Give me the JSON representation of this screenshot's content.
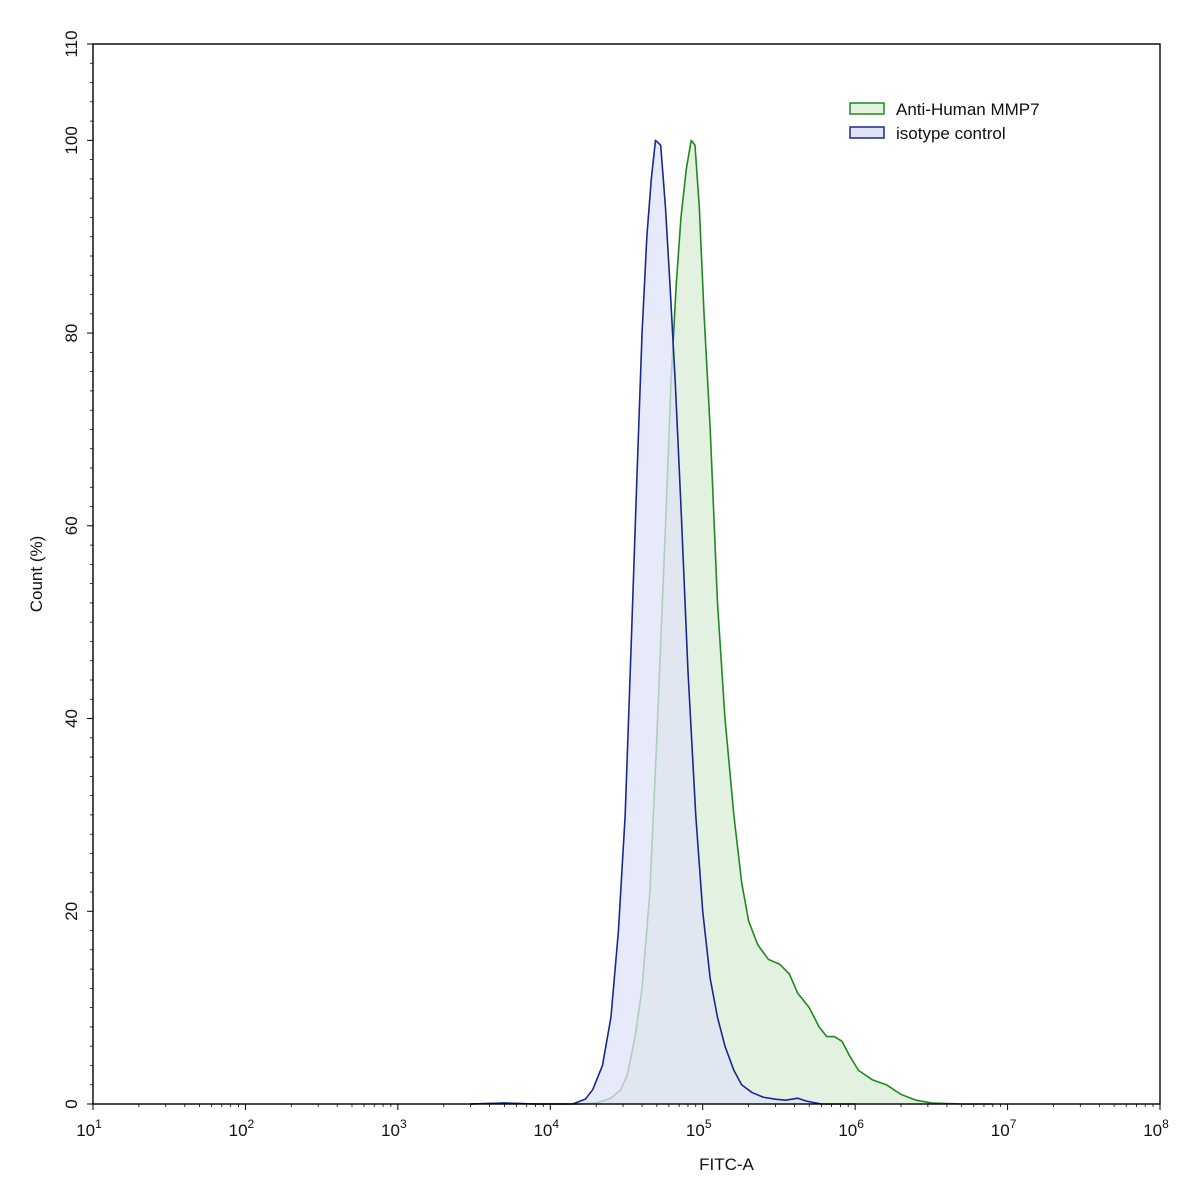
{
  "chart_data": {
    "type": "area",
    "xlabel": "FITC-A",
    "ylabel": "Count  (%)",
    "x_scale": "log10",
    "xlim": [
      10,
      100000000
    ],
    "ylim": [
      0,
      110
    ],
    "x_ticks": [
      {
        "base": "10",
        "exp": "1"
      },
      {
        "base": "10",
        "exp": "2"
      },
      {
        "base": "10",
        "exp": "3"
      },
      {
        "base": "10",
        "exp": "4"
      },
      {
        "base": "10",
        "exp": "5"
      },
      {
        "base": "10",
        "exp": "6"
      },
      {
        "base": "10",
        "exp": "7"
      },
      {
        "base": "10",
        "exp": "8"
      }
    ],
    "y_ticks": [
      "0",
      "20",
      "40",
      "60",
      "80",
      "100",
      "110"
    ],
    "legend_position": "top-right",
    "series": [
      {
        "name": "Anti-Human MMP7",
        "line_color": "#1e8a1e",
        "fill_color": "#e3f2e0",
        "points": [
          [
            3000,
            0
          ],
          [
            5000,
            0.1
          ],
          [
            8000,
            0
          ],
          [
            15000,
            0
          ],
          [
            20000,
            0.1
          ],
          [
            25000,
            0.6
          ],
          [
            29000,
            1.5
          ],
          [
            32000,
            3
          ],
          [
            36000,
            7
          ],
          [
            40000,
            12
          ],
          [
            45000,
            22
          ],
          [
            50000,
            38
          ],
          [
            57000,
            60
          ],
          [
            62000,
            75
          ],
          [
            67000,
            85
          ],
          [
            72000,
            92
          ],
          [
            78000,
            97
          ],
          [
            84000,
            100
          ],
          [
            89000,
            99.5
          ],
          [
            95000,
            93
          ],
          [
            102000,
            82
          ],
          [
            112000,
            70
          ],
          [
            125000,
            52
          ],
          [
            140000,
            40
          ],
          [
            160000,
            30
          ],
          [
            180000,
            23
          ],
          [
            200000,
            19
          ],
          [
            230000,
            16.5
          ],
          [
            270000,
            15
          ],
          [
            320000,
            14.5
          ],
          [
            370000,
            13.5
          ],
          [
            420000,
            11.5
          ],
          [
            500000,
            10
          ],
          [
            580000,
            8
          ],
          [
            650000,
            7
          ],
          [
            730000,
            7
          ],
          [
            820000,
            6.5
          ],
          [
            920000,
            5
          ],
          [
            1050000,
            3.5
          ],
          [
            1300000,
            2.5
          ],
          [
            1600000,
            2
          ],
          [
            2000000,
            1
          ],
          [
            2500000,
            0.4
          ],
          [
            3200000,
            0.1
          ],
          [
            5000000,
            0
          ],
          [
            8000000,
            0
          ]
        ]
      },
      {
        "name": "isotype control",
        "line_color": "#1a2890",
        "fill_color": "#dfe3f5",
        "points": [
          [
            3000,
            0
          ],
          [
            5000,
            0.1
          ],
          [
            8000,
            0
          ],
          [
            14000,
            0
          ],
          [
            17000,
            0.5
          ],
          [
            19000,
            1.5
          ],
          [
            22000,
            4
          ],
          [
            25000,
            9
          ],
          [
            28000,
            18
          ],
          [
            31000,
            30
          ],
          [
            34000,
            48
          ],
          [
            37000,
            65
          ],
          [
            40000,
            80
          ],
          [
            43000,
            90
          ],
          [
            46000,
            96
          ],
          [
            49000,
            100
          ],
          [
            53000,
            99.5
          ],
          [
            57000,
            93
          ],
          [
            61000,
            85
          ],
          [
            66000,
            75
          ],
          [
            72000,
            62
          ],
          [
            80000,
            45
          ],
          [
            90000,
            30
          ],
          [
            100000,
            20
          ],
          [
            112000,
            13
          ],
          [
            125000,
            9
          ],
          [
            140000,
            6
          ],
          [
            160000,
            3.5
          ],
          [
            180000,
            2
          ],
          [
            210000,
            1.2
          ],
          [
            250000,
            0.7
          ],
          [
            300000,
            0.5
          ],
          [
            350000,
            0.4
          ],
          [
            420000,
            0.6
          ],
          [
            480000,
            0.3
          ],
          [
            600000,
            0
          ],
          [
            1000000,
            0
          ]
        ]
      }
    ]
  }
}
